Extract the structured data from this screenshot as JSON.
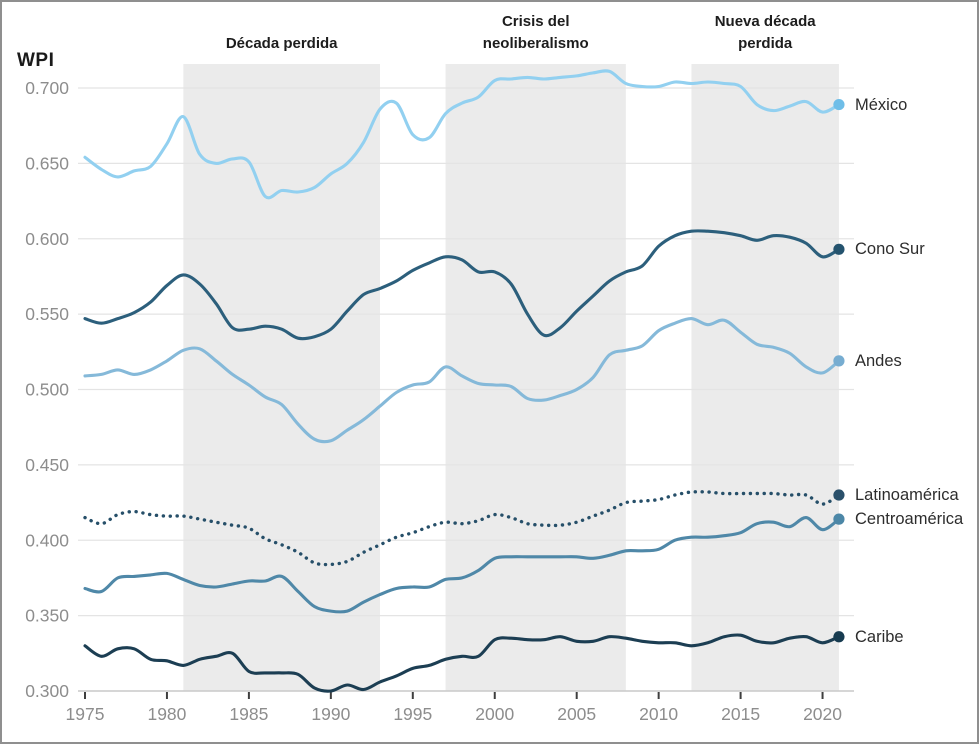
{
  "chart_data": {
    "type": "line",
    "title": "",
    "ylabel": "WPI",
    "xlabel": "",
    "x_start": 1975,
    "x_end": 2021,
    "x_ticks": [
      1975,
      1980,
      1985,
      1990,
      1995,
      2000,
      2005,
      2010,
      2015,
      2020
    ],
    "y_ticks": [
      0.7,
      0.65,
      0.6,
      0.55,
      0.5,
      0.45,
      0.4,
      0.35,
      0.3
    ],
    "y_tick_labels": [
      "0.700",
      "0.650",
      "0.600",
      "0.550",
      "0.500",
      "0.450",
      "0.400",
      "0.350",
      "0.300"
    ],
    "ylim": [
      0.295,
      0.715
    ],
    "grid": "horizontal",
    "legend_position": "right-of-line-ends",
    "bands": [
      {
        "label_lines": [
          "Década perdida"
        ],
        "from": 1981,
        "to": 1993,
        "color": "#ebebeb"
      },
      {
        "label_lines": [
          "Crisis del",
          "neoliberalismo"
        ],
        "from": 1997,
        "to": 2008,
        "color": "#ebebeb"
      },
      {
        "label_lines": [
          "Nueva década",
          "perdida"
        ],
        "from": 2012,
        "to": 2021,
        "color": "#ebebeb"
      }
    ],
    "years": [
      1975,
      1976,
      1977,
      1978,
      1979,
      1980,
      1981,
      1982,
      1983,
      1984,
      1985,
      1986,
      1987,
      1988,
      1989,
      1990,
      1991,
      1992,
      1993,
      1994,
      1995,
      1996,
      1997,
      1998,
      1999,
      2000,
      2001,
      2002,
      2003,
      2004,
      2005,
      2006,
      2007,
      2008,
      2009,
      2010,
      2011,
      2012,
      2013,
      2014,
      2015,
      2016,
      2017,
      2018,
      2019,
      2020,
      2021
    ],
    "series": [
      {
        "name": "México",
        "style": "solid",
        "color": "#92d0f0",
        "dot_color": "#6fbee8",
        "values": [
          0.654,
          0.646,
          0.641,
          0.645,
          0.648,
          0.663,
          0.681,
          0.656,
          0.65,
          0.653,
          0.651,
          0.628,
          0.632,
          0.631,
          0.634,
          0.643,
          0.65,
          0.664,
          0.686,
          0.69,
          0.669,
          0.667,
          0.683,
          0.69,
          0.694,
          0.705,
          0.706,
          0.707,
          0.706,
          0.707,
          0.708,
          0.71,
          0.711,
          0.703,
          0.701,
          0.701,
          0.704,
          0.703,
          0.704,
          0.703,
          0.701,
          0.689,
          0.685,
          0.688,
          0.691,
          0.684,
          0.689
        ]
      },
      {
        "name": "Cono Sur",
        "style": "solid",
        "color": "#2c5f7c",
        "dot_color": "#24536e",
        "values": [
          0.547,
          0.544,
          0.547,
          0.551,
          0.558,
          0.569,
          0.576,
          0.57,
          0.557,
          0.541,
          0.54,
          0.542,
          0.54,
          0.534,
          0.535,
          0.54,
          0.552,
          0.563,
          0.567,
          0.572,
          0.579,
          0.584,
          0.588,
          0.586,
          0.578,
          0.578,
          0.57,
          0.55,
          0.536,
          0.541,
          0.552,
          0.562,
          0.572,
          0.578,
          0.582,
          0.595,
          0.602,
          0.605,
          0.605,
          0.604,
          0.602,
          0.599,
          0.602,
          0.601,
          0.597,
          0.588,
          0.593
        ]
      },
      {
        "name": "Andes",
        "style": "solid",
        "color": "#85b9d9",
        "dot_color": "#77add1",
        "values": [
          0.509,
          0.51,
          0.513,
          0.51,
          0.513,
          0.519,
          0.526,
          0.527,
          0.519,
          0.51,
          0.503,
          0.495,
          0.49,
          0.477,
          0.467,
          0.466,
          0.473,
          0.48,
          0.489,
          0.498,
          0.503,
          0.505,
          0.515,
          0.509,
          0.504,
          0.503,
          0.502,
          0.494,
          0.493,
          0.496,
          0.5,
          0.508,
          0.523,
          0.526,
          0.529,
          0.539,
          0.544,
          0.547,
          0.543,
          0.546,
          0.538,
          0.53,
          0.528,
          0.524,
          0.515,
          0.511,
          0.519
        ]
      },
      {
        "name": "Latinoamérica",
        "style": "dotted",
        "color": "#264f69",
        "dot_color": "#2a506a",
        "values": [
          0.415,
          0.411,
          0.417,
          0.419,
          0.417,
          0.416,
          0.416,
          0.414,
          0.412,
          0.41,
          0.408,
          0.401,
          0.397,
          0.392,
          0.385,
          0.384,
          0.386,
          0.392,
          0.397,
          0.402,
          0.405,
          0.409,
          0.412,
          0.411,
          0.413,
          0.417,
          0.415,
          0.411,
          0.41,
          0.41,
          0.412,
          0.416,
          0.42,
          0.425,
          0.426,
          0.427,
          0.43,
          0.432,
          0.432,
          0.431,
          0.431,
          0.431,
          0.431,
          0.43,
          0.43,
          0.424,
          0.43
        ]
      },
      {
        "name": "Centroamérica",
        "style": "solid",
        "color": "#4f88a8",
        "dot_color": "#4c87a7",
        "values": [
          0.368,
          0.366,
          0.375,
          0.376,
          0.377,
          0.378,
          0.374,
          0.37,
          0.369,
          0.371,
          0.373,
          0.373,
          0.376,
          0.366,
          0.356,
          0.353,
          0.353,
          0.359,
          0.364,
          0.368,
          0.369,
          0.369,
          0.374,
          0.375,
          0.38,
          0.388,
          0.389,
          0.389,
          0.389,
          0.389,
          0.389,
          0.388,
          0.39,
          0.393,
          0.393,
          0.394,
          0.4,
          0.402,
          0.402,
          0.403,
          0.405,
          0.411,
          0.412,
          0.409,
          0.415,
          0.407,
          0.414
        ]
      },
      {
        "name": "Caribe",
        "style": "solid",
        "color": "#1c3e53",
        "dot_color": "#173b50",
        "values": [
          0.33,
          0.323,
          0.328,
          0.328,
          0.321,
          0.32,
          0.317,
          0.321,
          0.323,
          0.325,
          0.313,
          0.312,
          0.312,
          0.311,
          0.302,
          0.3,
          0.304,
          0.301,
          0.306,
          0.31,
          0.315,
          0.317,
          0.321,
          0.323,
          0.323,
          0.334,
          0.335,
          0.334,
          0.334,
          0.336,
          0.333,
          0.333,
          0.336,
          0.335,
          0.333,
          0.332,
          0.332,
          0.33,
          0.332,
          0.336,
          0.337,
          0.333,
          0.332,
          0.335,
          0.336,
          0.332,
          0.336
        ]
      }
    ],
    "colors": {
      "band_fill": "#ebebeb",
      "gridline": "#e4e4e4",
      "axis_line": "#c9c9c9",
      "tick_mark": "#3f3f3f",
      "tick_label": "#8d8d8d",
      "annotation_text": "#1d1d1d",
      "series_label_text": "#2d2d2d",
      "background": "#ffffff"
    }
  }
}
